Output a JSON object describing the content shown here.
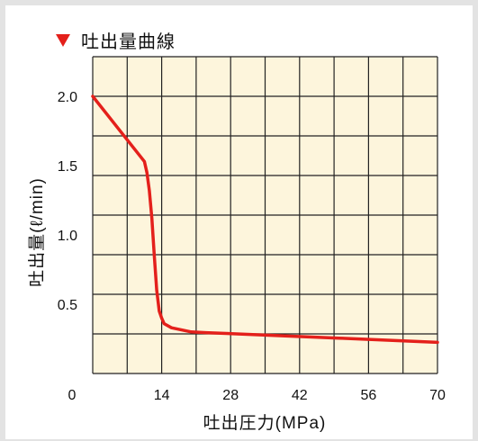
{
  "title": "吐出量曲線",
  "colors": {
    "plot_background": "#fdf5dc",
    "grid": "#222222",
    "line": "#e4201b",
    "title_marker": "#e4201b"
  },
  "chart_data": {
    "type": "line",
    "title": "吐出量曲線",
    "xlabel": "吐出圧力(MPa)",
    "ylabel": "吐出量(ℓ/min)",
    "xlim": [
      0,
      70
    ],
    "ylim": [
      0,
      2.0
    ],
    "x_ticks": [
      0,
      14,
      28,
      42,
      56,
      70
    ],
    "x_tick_labels": [
      "0",
      "14",
      "28",
      "42",
      "56",
      "70"
    ],
    "y_ticks": [
      0.5,
      1.0,
      1.5,
      2.0
    ],
    "y_tick_labels": [
      "0.5",
      "1.0",
      "1.5",
      "2.0"
    ],
    "grid": true,
    "x_gridlines": 10,
    "y_gridlines": 8,
    "series": [
      {
        "name": "",
        "x": [
          0,
          10.5,
          11,
          11.5,
          12,
          12.5,
          13,
          13.5,
          14,
          14.5,
          16,
          20,
          23,
          50,
          70
        ],
        "y": [
          2.0,
          1.53,
          1.45,
          1.32,
          1.12,
          0.85,
          0.6,
          0.45,
          0.4,
          0.36,
          0.33,
          0.3,
          0.295,
          0.255,
          0.225
        ]
      }
    ]
  }
}
